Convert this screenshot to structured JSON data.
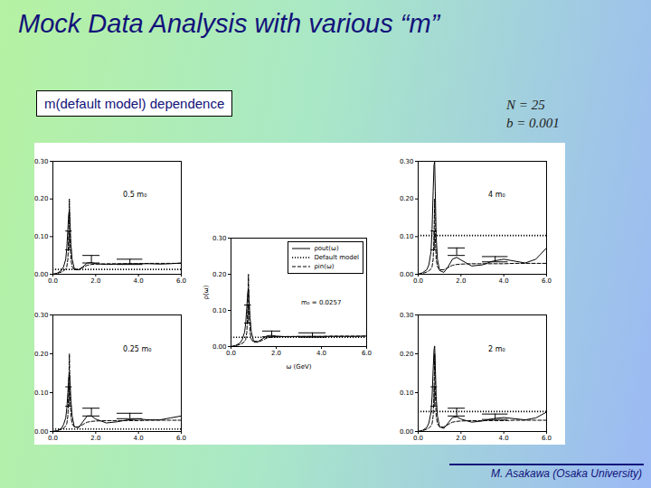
{
  "slide": {
    "title": "Mock Data Analysis with various “m”",
    "box": "m(default model) dependence",
    "params": [
      "N = 25",
      "b = 0.001"
    ],
    "footer": "M. Asakawa (Osaka University)"
  },
  "chart_data": [
    {
      "type": "line",
      "title": "0.5 m₀",
      "legend": "none",
      "x": [
        0,
        0.2,
        0.4,
        0.5,
        0.6,
        0.65,
        0.7,
        0.74,
        0.77,
        0.8,
        0.84,
        0.9,
        1.0,
        1.2,
        1.4,
        1.6,
        1.8,
        2.0,
        2.5,
        3.0,
        3.5,
        4.0,
        4.5,
        5.0,
        5.5,
        6.0
      ],
      "series": [
        {
          "name": "ρout(ω)",
          "color": "#000000",
          "line_style": "solid",
          "values": [
            0,
            0.003,
            0.01,
            0.02,
            0.04,
            0.07,
            0.12,
            0.16,
            0.17,
            0.14,
            0.08,
            0.04,
            0.015,
            0.012,
            0.02,
            0.03,
            0.031,
            0.028,
            0.026,
            0.027,
            0.028,
            0.028,
            0.028,
            0.027,
            0.028,
            0.03
          ]
        },
        {
          "name": "Default model",
          "color": "#000000",
          "line_style": "dotted",
          "value": 0.0129
        },
        {
          "name": "ρin(ω)",
          "color": "#000000",
          "line_style": "dashed",
          "values": [
            0,
            0.002,
            0.006,
            0.009,
            0.014,
            0.02,
            0.04,
            0.1,
            0.2,
            0.1,
            0.04,
            0.02,
            0.012,
            0.012,
            0.018,
            0.024,
            0.026,
            0.027,
            0.028,
            0.028,
            0.028,
            0.028,
            0.029,
            0.029,
            0.029,
            0.029
          ]
        }
      ],
      "error_bins": [
        {
          "x": [
            0.6,
            0.9
          ],
          "value": 0.09,
          "error": 0.025
        },
        {
          "x": [
            1.4,
            2.2
          ],
          "value": 0.04,
          "error": 0.01
        },
        {
          "x": [
            3.0,
            4.2
          ],
          "value": 0.033,
          "error": 0.007
        }
      ],
      "xlim": [
        0,
        6
      ],
      "xticks": [
        0,
        2,
        4,
        6
      ],
      "ylim": [
        0,
        0.3
      ],
      "yticks": [
        0,
        0.1,
        0.2,
        0.3
      ]
    },
    {
      "type": "line",
      "title": "4 m₀",
      "legend": "none",
      "x": [
        0,
        0.2,
        0.4,
        0.5,
        0.6,
        0.65,
        0.7,
        0.74,
        0.77,
        0.8,
        0.84,
        0.9,
        1.0,
        1.2,
        1.4,
        1.6,
        1.8,
        2.0,
        2.5,
        3.0,
        3.5,
        4.0,
        4.5,
        5.0,
        5.5,
        6.0
      ],
      "series": [
        {
          "name": "ρout(ω)",
          "color": "#000000",
          "line_style": "solid",
          "values": [
            0,
            0.004,
            0.012,
            0.025,
            0.06,
            0.12,
            0.22,
            0.29,
            0.3,
            0.22,
            0.1,
            0.04,
            0.01,
            0.005,
            0.02,
            0.04,
            0.045,
            0.038,
            0.022,
            0.025,
            0.035,
            0.04,
            0.035,
            0.03,
            0.04,
            0.07
          ]
        },
        {
          "name": "Default model",
          "color": "#000000",
          "line_style": "dotted",
          "value": 0.1028
        },
        {
          "name": "ρin(ω)",
          "color": "#000000",
          "line_style": "dashed",
          "values": [
            0,
            0.002,
            0.006,
            0.009,
            0.014,
            0.02,
            0.04,
            0.1,
            0.2,
            0.1,
            0.04,
            0.02,
            0.012,
            0.012,
            0.018,
            0.024,
            0.026,
            0.027,
            0.028,
            0.028,
            0.028,
            0.028,
            0.029,
            0.029,
            0.029,
            0.029
          ]
        }
      ],
      "error_bins": [
        {
          "x": [
            0.6,
            0.9
          ],
          "value": 0.09,
          "error": 0.025
        },
        {
          "x": [
            1.4,
            2.2
          ],
          "value": 0.06,
          "error": 0.01
        },
        {
          "x": [
            3.0,
            4.2
          ],
          "value": 0.04,
          "error": 0.007
        }
      ],
      "xlim": [
        0,
        6
      ],
      "xticks": [
        0,
        2,
        4,
        6
      ],
      "ylim": [
        0,
        0.3
      ],
      "yticks": [
        0,
        0.1,
        0.2,
        0.3
      ]
    },
    {
      "type": "line",
      "legend": "top-right",
      "x_label": "ω (GeV)",
      "y_label": "ρ(ω)",
      "annotations": [
        "m₀ = 0.0257"
      ],
      "x": [
        0,
        0.2,
        0.4,
        0.5,
        0.6,
        0.65,
        0.7,
        0.74,
        0.77,
        0.8,
        0.84,
        0.9,
        1.0,
        1.2,
        1.4,
        1.6,
        1.8,
        2.0,
        2.5,
        3.0,
        3.5,
        4.0,
        4.5,
        5.0,
        5.5,
        6.0
      ],
      "series": [
        {
          "name": "ρout(ω)",
          "color": "#000000",
          "line_style": "solid",
          "values": [
            0,
            0.003,
            0.01,
            0.02,
            0.04,
            0.065,
            0.11,
            0.15,
            0.16,
            0.13,
            0.08,
            0.04,
            0.015,
            0.014,
            0.022,
            0.03,
            0.031,
            0.029,
            0.027,
            0.028,
            0.028,
            0.028,
            0.028,
            0.028,
            0.028,
            0.029
          ]
        },
        {
          "name": "Default model",
          "color": "#000000",
          "line_style": "dotted",
          "value": 0.0257
        },
        {
          "name": "ρin(ω)",
          "color": "#000000",
          "line_style": "dashed",
          "values": [
            0,
            0.002,
            0.006,
            0.009,
            0.014,
            0.02,
            0.04,
            0.1,
            0.2,
            0.1,
            0.04,
            0.02,
            0.012,
            0.012,
            0.018,
            0.024,
            0.026,
            0.027,
            0.028,
            0.028,
            0.028,
            0.028,
            0.029,
            0.029,
            0.029,
            0.029
          ]
        }
      ],
      "error_bins": [
        {
          "x": [
            0.6,
            0.9
          ],
          "value": 0.09,
          "error": 0.025
        },
        {
          "x": [
            1.4,
            2.2
          ],
          "value": 0.035,
          "error": 0.008
        },
        {
          "x": [
            3.0,
            4.2
          ],
          "value": 0.032,
          "error": 0.006
        }
      ],
      "xlim": [
        0,
        6
      ],
      "xticks": [
        0,
        2,
        4,
        6
      ],
      "ylim": [
        0,
        0.3
      ],
      "yticks": [
        0,
        0.1,
        0.2,
        0.3
      ]
    },
    {
      "type": "line",
      "title": "0.25 m₀",
      "legend": "none",
      "x": [
        0,
        0.2,
        0.4,
        0.5,
        0.6,
        0.65,
        0.7,
        0.74,
        0.77,
        0.8,
        0.84,
        0.9,
        1.0,
        1.2,
        1.4,
        1.6,
        1.8,
        2.0,
        2.5,
        3.0,
        3.5,
        4.0,
        4.5,
        5.0,
        5.5,
        6.0
      ],
      "series": [
        {
          "name": "ρout(ω)",
          "color": "#000000",
          "line_style": "solid",
          "values": [
            0,
            0.002,
            0.008,
            0.018,
            0.035,
            0.06,
            0.1,
            0.14,
            0.15,
            0.13,
            0.08,
            0.04,
            0.012,
            0.01,
            0.025,
            0.04,
            0.04,
            0.032,
            0.022,
            0.025,
            0.03,
            0.032,
            0.03,
            0.03,
            0.035,
            0.04
          ]
        },
        {
          "name": "Default model",
          "color": "#000000",
          "line_style": "dotted",
          "value": 0.0064
        },
        {
          "name": "ρin(ω)",
          "color": "#000000",
          "line_style": "dashed",
          "values": [
            0,
            0.002,
            0.006,
            0.009,
            0.014,
            0.02,
            0.04,
            0.1,
            0.2,
            0.1,
            0.04,
            0.02,
            0.012,
            0.012,
            0.018,
            0.024,
            0.026,
            0.027,
            0.028,
            0.028,
            0.028,
            0.028,
            0.029,
            0.029,
            0.029,
            0.029
          ]
        }
      ],
      "error_bins": [
        {
          "x": [
            0.6,
            0.9
          ],
          "value": 0.09,
          "error": 0.025
        },
        {
          "x": [
            1.4,
            2.2
          ],
          "value": 0.05,
          "error": 0.01
        },
        {
          "x": [
            3.0,
            4.2
          ],
          "value": 0.04,
          "error": 0.007
        }
      ],
      "xlim": [
        0,
        6
      ],
      "xticks": [
        0,
        2,
        4,
        6
      ],
      "ylim": [
        0,
        0.3
      ],
      "yticks": [
        0,
        0.1,
        0.2,
        0.3
      ]
    },
    {
      "type": "line",
      "title": "2 m₀",
      "legend": "none",
      "x": [
        0,
        0.2,
        0.4,
        0.5,
        0.6,
        0.65,
        0.7,
        0.74,
        0.77,
        0.8,
        0.84,
        0.9,
        1.0,
        1.2,
        1.4,
        1.6,
        1.8,
        2.0,
        2.5,
        3.0,
        3.5,
        4.0,
        4.5,
        5.0,
        5.5,
        6.0
      ],
      "series": [
        {
          "name": "ρout(ω)",
          "color": "#000000",
          "line_style": "solid",
          "values": [
            0,
            0.003,
            0.01,
            0.022,
            0.05,
            0.09,
            0.16,
            0.21,
            0.22,
            0.17,
            0.09,
            0.04,
            0.012,
            0.008,
            0.022,
            0.036,
            0.038,
            0.032,
            0.024,
            0.027,
            0.033,
            0.036,
            0.033,
            0.03,
            0.035,
            0.05
          ]
        },
        {
          "name": "Default model",
          "color": "#000000",
          "line_style": "dotted",
          "value": 0.0514
        },
        {
          "name": "ρin(ω)",
          "color": "#000000",
          "line_style": "dashed",
          "values": [
            0,
            0.002,
            0.006,
            0.009,
            0.014,
            0.02,
            0.04,
            0.1,
            0.2,
            0.1,
            0.04,
            0.02,
            0.012,
            0.012,
            0.018,
            0.024,
            0.026,
            0.027,
            0.028,
            0.028,
            0.028,
            0.028,
            0.029,
            0.029,
            0.029,
            0.029
          ]
        }
      ],
      "error_bins": [
        {
          "x": [
            0.6,
            0.9
          ],
          "value": 0.09,
          "error": 0.025
        },
        {
          "x": [
            1.4,
            2.2
          ],
          "value": 0.05,
          "error": 0.01
        },
        {
          "x": [
            3.0,
            4.2
          ],
          "value": 0.038,
          "error": 0.007
        }
      ],
      "xlim": [
        0,
        6
      ],
      "xticks": [
        0,
        2,
        4,
        6
      ],
      "ylim": [
        0,
        0.3
      ],
      "yticks": [
        0,
        0.1,
        0.2,
        0.3
      ]
    }
  ]
}
